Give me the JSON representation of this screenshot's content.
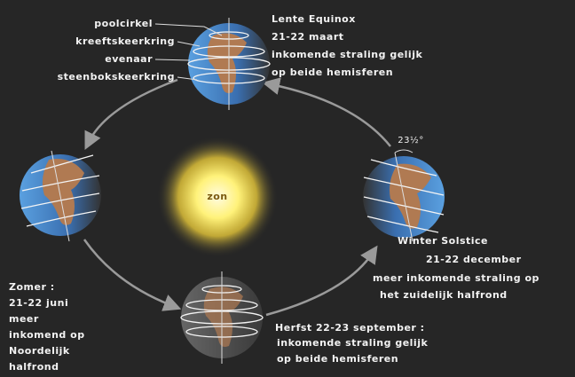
{
  "legend_labels": [
    "poolcirkel",
    "kreeftskeerkring",
    "evenaar",
    "steenbokskeerkring"
  ],
  "sun": "zon",
  "tilt": "23½°",
  "spring": [
    "Lente Equinox",
    "21-22 maart",
    "inkomende straling gelijk",
    "op beide hemisferen"
  ],
  "winter": [
    "Winter Solstice",
    "21-22 december",
    "meer inkomende straling op",
    "het zuidelijk halfrond"
  ],
  "autumn": [
    "Herfst 22-23 september :",
    "inkomende straling gelijk",
    "op beide hemisferen"
  ],
  "summer": [
    "Zomer :",
    "21-22 juni",
    "meer",
    "inkomend op",
    "Noordelijk",
    "halfrond"
  ]
}
